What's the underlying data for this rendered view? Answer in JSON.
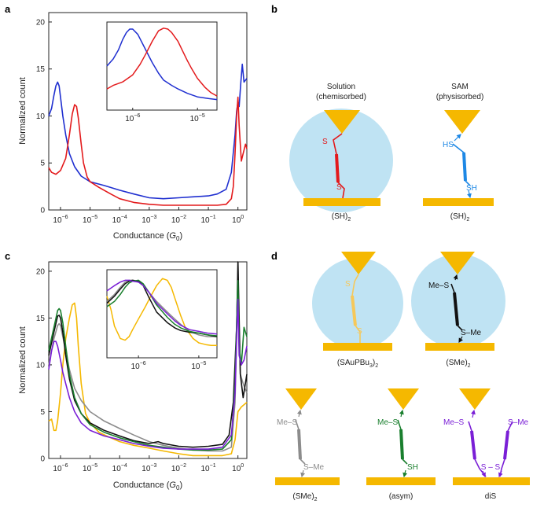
{
  "labels": {
    "a": "a",
    "b": "b",
    "c": "c",
    "d": "d"
  },
  "colors": {
    "red": "#e31a1c",
    "blue": "#1f2fd0",
    "gold": "#f5b800",
    "gray": "#8c8c8c",
    "black": "#111111",
    "green": "#1a7f2e",
    "purple": "#7a1fd6",
    "lightblue": "#bfe3f3",
    "ltgold": "#f6c85a"
  },
  "chart_data": [
    {
      "panel": "a",
      "type": "line",
      "xlabel": "Conductance (G0)",
      "xlabel_main": "Conductance (",
      "xlabel_G": "G",
      "xlabel_sub": "0",
      "xlabel_close": ")",
      "ylabel": "Normalized count",
      "xscale": "log",
      "xlim": [
        4e-07,
        2.0
      ],
      "ylim": [
        0,
        21
      ],
      "yticks": [
        0,
        5,
        10,
        15,
        20
      ],
      "xticks": [
        {
          "base": "10",
          "exp": "−6",
          "v": 1e-06
        },
        {
          "base": "10",
          "exp": "−5",
          "v": 1e-05
        },
        {
          "base": "10",
          "exp": "−4",
          "v": 0.0001
        },
        {
          "base": "10",
          "exp": "−3",
          "v": 0.001
        },
        {
          "base": "10",
          "exp": "−2",
          "v": 0.01
        },
        {
          "base": "10",
          "exp": "−1",
          "v": 0.1
        },
        {
          "base": "10",
          "exp": "0",
          "v": 1
        }
      ],
      "series": [
        {
          "name": "SAM (SH)2",
          "color": "blue",
          "x": [
            4e-07,
            5e-07,
            6e-07,
            7e-07,
            8e-07,
            9e-07,
            1e-06,
            1.2e-06,
            1.5e-06,
            2e-06,
            3e-06,
            5e-06,
            1e-05,
            3e-05,
            0.0001,
            0.0003,
            0.001,
            0.003,
            0.01,
            0.03,
            0.1,
            0.2,
            0.4,
            0.6,
            0.8,
            0.9,
            1.0,
            1.1,
            1.25,
            1.4,
            1.6,
            2.0
          ],
          "y": [
            10.0,
            10.8,
            12.2,
            13.2,
            13.6,
            13.2,
            12.0,
            10.0,
            8.0,
            6.0,
            4.6,
            3.6,
            3.0,
            2.6,
            2.1,
            1.7,
            1.3,
            1.2,
            1.3,
            1.4,
            1.5,
            1.7,
            2.2,
            4.0,
            8.0,
            10.5,
            11.5,
            11.0,
            13.5,
            15.5,
            13.6,
            14.0
          ]
        },
        {
          "name": "Solution (SH)2",
          "color": "red",
          "x": [
            4e-07,
            5e-07,
            7e-07,
            1e-06,
            1.5e-06,
            2e-06,
            2.5e-06,
            3e-06,
            3.5e-06,
            4e-06,
            5e-06,
            6e-06,
            8e-06,
            1e-05,
            2e-05,
            5e-05,
            0.0001,
            0.0003,
            0.001,
            0.003,
            0.01,
            0.03,
            0.1,
            0.2,
            0.4,
            0.6,
            0.7,
            0.8,
            0.9,
            1.0,
            1.1,
            1.3,
            1.5,
            1.8,
            2.0
          ],
          "y": [
            4.5,
            4.0,
            3.8,
            4.2,
            5.5,
            8.0,
            10.2,
            11.2,
            11.0,
            9.8,
            7.0,
            5.0,
            3.5,
            3.0,
            2.4,
            1.7,
            1.2,
            0.8,
            0.6,
            0.5,
            0.5,
            0.5,
            0.5,
            0.5,
            0.6,
            1.2,
            2.5,
            6.0,
            10.0,
            12.0,
            9.0,
            5.2,
            6.0,
            7.0,
            6.5
          ]
        }
      ],
      "inset": {
        "xscale": "log",
        "xlim": [
          4e-07,
          2e-05
        ],
        "ylim": [
          0,
          1
        ],
        "xticks": [
          {
            "base": "10",
            "exp": "−6",
            "v": 1e-06
          },
          {
            "base": "10",
            "exp": "−5",
            "v": 1e-05
          }
        ],
        "series": [
          {
            "name": "SAM (SH)2",
            "color": "blue",
            "x": [
              4e-07,
              5e-07,
              6e-07,
              7e-07,
              8e-07,
              9e-07,
              1e-06,
              1.2e-06,
              1.5e-06,
              2e-06,
              2.5e-06,
              3e-06,
              4e-06,
              5e-06,
              7e-06,
              1e-05,
              1.5e-05,
              2e-05
            ],
            "y": [
              0.5,
              0.58,
              0.68,
              0.8,
              0.88,
              0.92,
              0.92,
              0.86,
              0.72,
              0.54,
              0.42,
              0.34,
              0.28,
              0.24,
              0.19,
              0.15,
              0.13,
              0.12
            ]
          },
          {
            "name": "Solution (SH)2",
            "color": "red",
            "x": [
              4e-07,
              5e-07,
              7e-07,
              1e-06,
              1.3e-06,
              1.6e-06,
              2e-06,
              2.5e-06,
              3e-06,
              3.5e-06,
              4e-06,
              5e-06,
              6e-06,
              7e-06,
              8e-06,
              1e-05,
              1.3e-05,
              1.6e-05,
              2e-05
            ],
            "y": [
              0.24,
              0.28,
              0.32,
              0.4,
              0.52,
              0.64,
              0.78,
              0.9,
              0.93,
              0.92,
              0.88,
              0.78,
              0.66,
              0.56,
              0.48,
              0.36,
              0.26,
              0.2,
              0.16
            ]
          }
        ]
      }
    },
    {
      "panel": "c",
      "type": "line",
      "xlabel": "Conductance (G0)",
      "xlabel_main": "Conductance (",
      "xlabel_G": "G",
      "xlabel_sub": "0",
      "xlabel_close": ")",
      "ylabel": "Normalized count",
      "xscale": "log",
      "xlim": [
        4e-07,
        2.0
      ],
      "ylim": [
        0,
        21
      ],
      "yticks": [
        0,
        5,
        10,
        15,
        20
      ],
      "xticks": [
        {
          "base": "10",
          "exp": "−6",
          "v": 1e-06
        },
        {
          "base": "10",
          "exp": "−5",
          "v": 1e-05
        },
        {
          "base": "10",
          "exp": "−4",
          "v": 0.0001
        },
        {
          "base": "10",
          "exp": "−3",
          "v": 0.001
        },
        {
          "base": "10",
          "exp": "−2",
          "v": 0.01
        },
        {
          "base": "10",
          "exp": "−1",
          "v": 0.1
        },
        {
          "base": "10",
          "exp": "0",
          "v": 1
        }
      ],
      "series": [
        {
          "name": "(SAuPBu3)2",
          "color": "gold",
          "x": [
            4e-07,
            5e-07,
            6e-07,
            7e-07,
            8e-07,
            1e-06,
            1.2e-06,
            1.5e-06,
            2e-06,
            2.5e-06,
            3e-06,
            3.5e-06,
            4e-06,
            5e-06,
            7e-06,
            1e-05,
            2e-05,
            5e-05,
            0.0001,
            0.0003,
            0.001,
            0.003,
            0.01,
            0.03,
            0.1,
            0.3,
            0.6,
            0.8,
            1.0,
            1.3,
            2.0
          ],
          "y": [
            4.0,
            4.2,
            3.0,
            3.0,
            4.0,
            7.0,
            10.0,
            12.8,
            15.0,
            16.4,
            16.6,
            15.0,
            12.0,
            8.0,
            4.8,
            3.8,
            2.8,
            2.2,
            1.8,
            1.4,
            1.1,
            0.8,
            0.5,
            0.3,
            0.3,
            0.3,
            0.5,
            2.0,
            5.0,
            5.5,
            6.0
          ]
        },
        {
          "name": "(SMe)2 gray",
          "color": "gray",
          "x": [
            4e-07,
            6e-07,
            8e-07,
            9e-07,
            1e-06,
            1.2e-06,
            1.5e-06,
            2e-06,
            3e-06,
            5e-06,
            1e-05,
            3e-05,
            0.0001,
            0.0003,
            0.001,
            0.003,
            0.01,
            0.03,
            0.1,
            0.3,
            0.6,
            0.8,
            0.95,
            1.0,
            1.05,
            1.2,
            1.5,
            2.0
          ],
          "y": [
            10.0,
            12.8,
            14.2,
            14.4,
            14.2,
            13.0,
            11.5,
            9.5,
            7.5,
            6.2,
            5.0,
            4.0,
            3.2,
            2.5,
            1.8,
            1.4,
            1.1,
            0.9,
            0.8,
            0.8,
            1.2,
            6.0,
            16.0,
            21.0,
            16.0,
            9.0,
            8.0,
            7.0
          ]
        },
        {
          "name": "(SMe)2 black",
          "color": "black",
          "x": [
            4e-07,
            6e-07,
            8e-07,
            9e-07,
            1e-06,
            1.2e-06,
            1.5e-06,
            2e-06,
            3e-06,
            5e-06,
            1e-05,
            3e-05,
            0.0001,
            0.0003,
            0.001,
            0.002,
            0.003,
            0.01,
            0.03,
            0.1,
            0.3,
            0.5,
            0.7,
            0.9,
            1.0,
            1.2,
            1.5,
            2.0
          ],
          "y": [
            11.0,
            13.5,
            15.2,
            15.3,
            15.0,
            13.5,
            11.0,
            8.5,
            6.2,
            4.8,
            3.8,
            3.0,
            2.4,
            1.9,
            1.6,
            1.8,
            1.6,
            1.3,
            1.2,
            1.3,
            1.5,
            2.5,
            6.0,
            14.0,
            21.0,
            9.0,
            6.5,
            9.0
          ]
        },
        {
          "name": "(asym)",
          "color": "green",
          "x": [
            4e-07,
            6e-07,
            8e-07,
            9e-07,
            1e-06,
            1.2e-06,
            1.5e-06,
            2e-06,
            3e-06,
            5e-06,
            1e-05,
            3e-05,
            0.0001,
            0.0003,
            0.001,
            0.003,
            0.01,
            0.03,
            0.1,
            0.3,
            0.6,
            0.8,
            0.95,
            1.0,
            1.1,
            1.3,
            1.6,
            2.0
          ],
          "y": [
            11.5,
            14.0,
            15.8,
            16.0,
            15.8,
            14.5,
            12.0,
            9.0,
            6.5,
            4.8,
            3.6,
            2.8,
            2.2,
            1.8,
            1.4,
            1.2,
            1.0,
            0.9,
            0.9,
            1.0,
            2.0,
            8.0,
            17.0,
            19.0,
            12.0,
            10.0,
            14.0,
            13.0
          ]
        },
        {
          "name": "diS",
          "color": "purple",
          "x": [
            4e-07,
            5e-07,
            6e-07,
            7e-07,
            8e-07,
            1e-06,
            1.2e-06,
            1.5e-06,
            2e-06,
            3e-06,
            5e-06,
            1e-05,
            3e-05,
            0.0001,
            0.0003,
            0.001,
            0.003,
            0.01,
            0.03,
            0.1,
            0.3,
            0.6,
            0.8,
            0.95,
            1.0,
            1.1,
            1.3,
            1.6,
            2.0
          ],
          "y": [
            9.5,
            11.5,
            12.5,
            12.5,
            12.0,
            10.5,
            9.2,
            8.0,
            6.5,
            5.0,
            3.8,
            3.0,
            2.4,
            2.0,
            1.6,
            1.3,
            1.1,
            1.0,
            1.0,
            1.0,
            1.2,
            2.5,
            7.0,
            15.0,
            17.0,
            11.0,
            10.0,
            10.5,
            12.0
          ]
        }
      ],
      "inset": {
        "xscale": "log",
        "xlim": [
          3e-07,
          2e-05
        ],
        "ylim": [
          0,
          1
        ],
        "xticks": [
          {
            "base": "10",
            "exp": "−6",
            "v": 1e-06
          },
          {
            "base": "10",
            "exp": "−5",
            "v": 1e-05
          }
        ],
        "series": [
          {
            "name": "(SAuPBu3)2",
            "color": "gold",
            "x": [
              3e-07,
              3.5e-07,
              4e-07,
              5e-07,
              6e-07,
              7e-07,
              8e-07,
              1e-06,
              1.3e-06,
              1.6e-06,
              2e-06,
              2.5e-06,
              3e-06,
              3.5e-06,
              4e-06,
              5e-06,
              6e-06,
              8e-06,
              1e-05,
              1.3e-05,
              1.6e-05,
              2e-05
            ],
            "y": [
              0.7,
              0.55,
              0.36,
              0.22,
              0.2,
              0.24,
              0.32,
              0.44,
              0.58,
              0.7,
              0.82,
              0.9,
              0.88,
              0.8,
              0.68,
              0.48,
              0.34,
              0.22,
              0.17,
              0.15,
              0.14,
              0.14
            ]
          },
          {
            "name": "(SMe)2 gray",
            "color": "gray",
            "x": [
              3e-07,
              4e-07,
              5e-07,
              6e-07,
              7e-07,
              8e-07,
              1e-06,
              1.2e-06,
              1.5e-06,
              2e-06,
              3e-06,
              4e-06,
              5e-06,
              7e-06,
              1e-05,
              1.4e-05,
              2e-05
            ],
            "y": [
              0.64,
              0.72,
              0.8,
              0.86,
              0.88,
              0.88,
              0.86,
              0.82,
              0.74,
              0.64,
              0.52,
              0.44,
              0.38,
              0.3,
              0.26,
              0.24,
              0.24
            ]
          },
          {
            "name": "(SMe)2 black",
            "color": "black",
            "x": [
              3e-07,
              4e-07,
              5e-07,
              6e-07,
              7e-07,
              8e-07,
              1e-06,
              1.2e-06,
              1.5e-06,
              2e-06,
              3e-06,
              4e-06,
              5e-06,
              7e-06,
              1e-05,
              1.4e-05,
              2e-05
            ],
            "y": [
              0.62,
              0.7,
              0.78,
              0.84,
              0.87,
              0.88,
              0.87,
              0.82,
              0.68,
              0.52,
              0.4,
              0.34,
              0.31,
              0.29,
              0.28,
              0.26,
              0.24
            ]
          },
          {
            "name": "(asym)",
            "color": "green",
            "x": [
              3e-07,
              4e-07,
              5e-07,
              6e-07,
              7e-07,
              8e-07,
              1e-06,
              1.2e-06,
              1.5e-06,
              2e-06,
              3e-06,
              4e-06,
              5e-06,
              7e-06,
              1e-05,
              1.4e-05,
              2e-05
            ],
            "y": [
              0.58,
              0.64,
              0.72,
              0.8,
              0.85,
              0.87,
              0.88,
              0.84,
              0.74,
              0.6,
              0.46,
              0.38,
              0.34,
              0.3,
              0.28,
              0.26,
              0.25
            ]
          },
          {
            "name": "diS",
            "color": "purple",
            "x": [
              3e-07,
              4e-07,
              5e-07,
              6e-07,
              7e-07,
              8e-07,
              1e-06,
              1.2e-06,
              1.5e-06,
              2e-06,
              3e-06,
              4e-06,
              5e-06,
              7e-06,
              1e-05,
              1.4e-05,
              2e-05
            ],
            "y": [
              0.76,
              0.82,
              0.86,
              0.88,
              0.88,
              0.87,
              0.86,
              0.82,
              0.74,
              0.62,
              0.5,
              0.42,
              0.37,
              0.32,
              0.3,
              0.28,
              0.27
            ]
          }
        ]
      }
    }
  ],
  "panel_b": {
    "solution_title": "Solution",
    "solution_sub": "(chemisorbed)",
    "sam_title": "SAM",
    "sam_sub": "(physisorbed)",
    "s_top": "S",
    "s_bottom": "S",
    "hs": "HS",
    "sh": "SH",
    "caption_left_main": "(SH)",
    "caption_left_sub": "2",
    "caption_right_main": "(SH)",
    "caption_right_sub": "2"
  },
  "panel_d": {
    "aupbu_s_top": "S",
    "aupbu_s_bottom": "S",
    "aupbu_caption_main": "(SAuPBu",
    "aupbu_caption_sub3": "3",
    "aupbu_caption_close": ")",
    "aupbu_caption_sub2": "2",
    "sme_top": "Me–S",
    "sme_bottom": "S–Me",
    "sme_caption_main": "(SMe)",
    "sme_caption_sub": "2",
    "gray_top": "Me–S",
    "gray_bottom": "S–Me",
    "gray_caption_main": "(SMe)",
    "gray_caption_sub": "2",
    "asym_top": "Me–S",
    "asym_bottom": "SH",
    "asym_caption": "(asym)",
    "dis_left_top": "Me–S",
    "dis_right_top": "S–Me",
    "dis_bridge": "S – S",
    "dis_caption": "diS"
  }
}
